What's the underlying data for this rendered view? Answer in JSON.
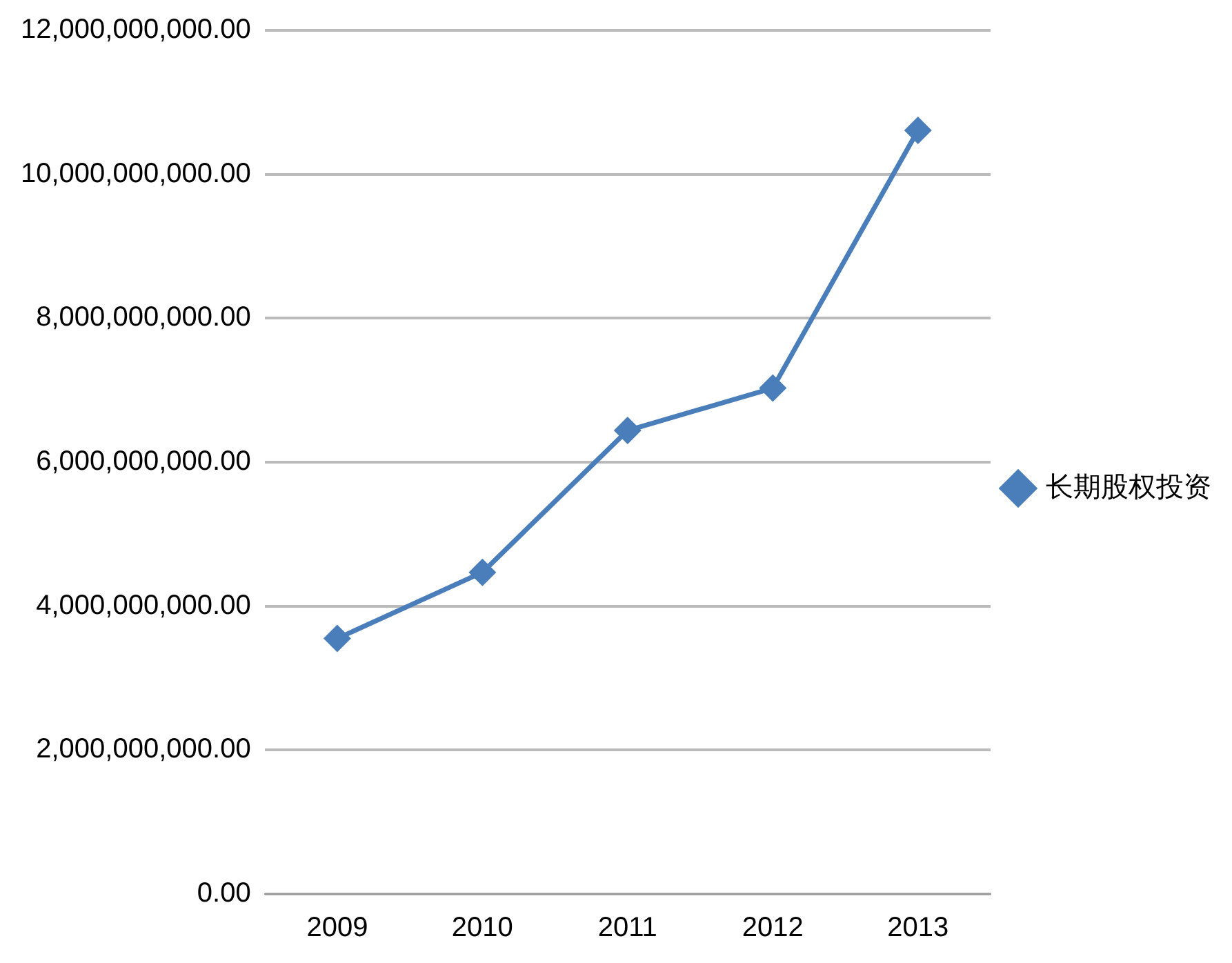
{
  "chart_data": {
    "type": "line",
    "categories": [
      "2009",
      "2010",
      "2011",
      "2012",
      "2013"
    ],
    "series": [
      {
        "name": "长期股权投资",
        "color": "#4a7ebb",
        "values": [
          3550000000,
          4470000000,
          6440000000,
          7030000000,
          10610000000
        ]
      }
    ],
    "ylim": [
      0,
      12000000000
    ],
    "yticks": [
      {
        "value": 0,
        "label": "0.00"
      },
      {
        "value": 2000000000,
        "label": "2,000,000,000.00"
      },
      {
        "value": 4000000000,
        "label": "4,000,000,000.00"
      },
      {
        "value": 6000000000,
        "label": "6,000,000,000.00"
      },
      {
        "value": 8000000000,
        "label": "8,000,000,000.00"
      },
      {
        "value": 10000000000,
        "label": "10,000,000,000.00"
      },
      {
        "value": 12000000000,
        "label": "12,000,000,000.00"
      }
    ],
    "grid": "y",
    "legend": "right",
    "marker": "diamond",
    "line_style": "solid"
  }
}
